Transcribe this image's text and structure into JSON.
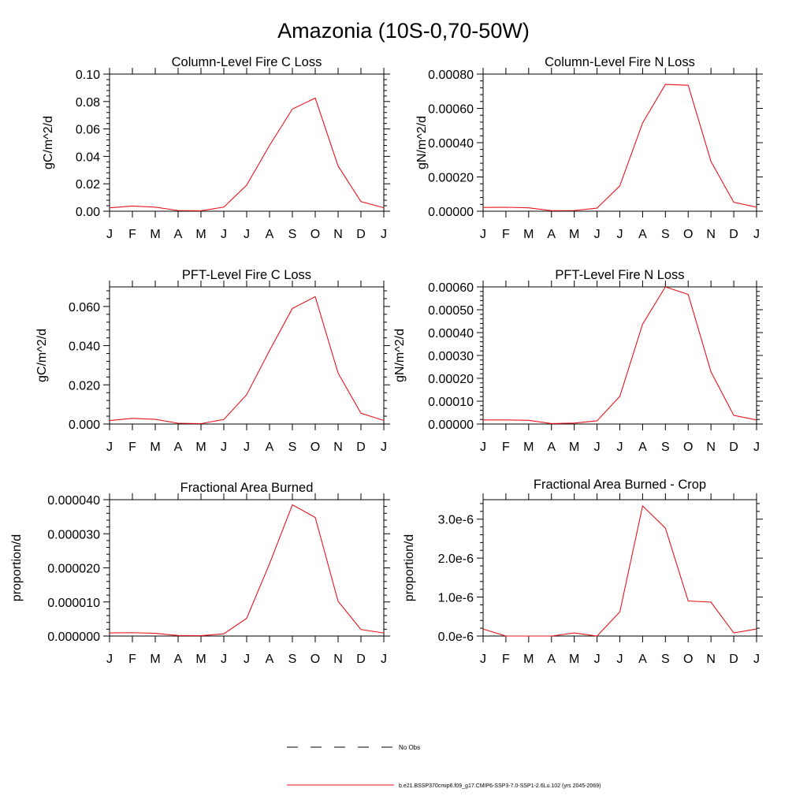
{
  "figure": {
    "title": "Amazonia (10S-0,70-50W)",
    "months": [
      "J",
      "F",
      "M",
      "A",
      "M",
      "J",
      "J",
      "A",
      "S",
      "O",
      "N",
      "D",
      "J"
    ]
  },
  "legend": {
    "obs_label": "No Obs",
    "model_label": "b.e21.BSSP370cmip6.f09_g17.CMIP6-SSP3-7.0-SSP1-2.6Lu.102 (yrs 2045-2069)",
    "model_color": "#e8141c",
    "obs_color": "#000000"
  },
  "chart_data": [
    {
      "type": "line",
      "title": "Column-Level Fire C Loss",
      "ylabel": "gC/m^2/d",
      "x": [
        "J",
        "F",
        "M",
        "A",
        "M",
        "J",
        "J",
        "A",
        "S",
        "O",
        "N",
        "D",
        "J"
      ],
      "ylim": [
        0,
        0.1
      ],
      "yticks": [
        0,
        0.02,
        0.04,
        0.06,
        0.08,
        0.1
      ],
      "ytick_labels": [
        "0.00",
        "0.02",
        "0.04",
        "0.06",
        "0.08",
        "0.10"
      ],
      "series": [
        {
          "values": [
            0.0025,
            0.0038,
            0.003,
            0.0005,
            0.0003,
            0.003,
            0.019,
            0.048,
            0.0745,
            0.0825,
            0.033,
            0.007,
            0.0025
          ]
        }
      ]
    },
    {
      "type": "line",
      "title": "Column-Level Fire N Loss",
      "ylabel": "gN/m^2/d",
      "x": [
        "J",
        "F",
        "M",
        "A",
        "M",
        "J",
        "J",
        "A",
        "S",
        "O",
        "N",
        "D",
        "J"
      ],
      "ylim": [
        0,
        0.0008
      ],
      "yticks": [
        0,
        0.0002,
        0.0004,
        0.0006,
        0.0008
      ],
      "ytick_labels": [
        "0.00000",
        "0.00020",
        "0.00040",
        "0.00060",
        "0.00080"
      ],
      "series": [
        {
          "values": [
            2.2e-05,
            2.3e-05,
            2e-05,
            3e-06,
            4e-06,
            1.8e-05,
            0.000148,
            0.000515,
            0.00074,
            0.000735,
            0.00029,
            5.2e-05,
            2.4e-05
          ]
        }
      ]
    },
    {
      "type": "line",
      "title": "PFT-Level Fire C Loss",
      "ylabel": "gC/m^2/d",
      "x": [
        "J",
        "F",
        "M",
        "A",
        "M",
        "J",
        "J",
        "A",
        "S",
        "O",
        "N",
        "D",
        "J"
      ],
      "ylim": [
        0,
        0.07
      ],
      "yticks": [
        0,
        0.02,
        0.04,
        0.06
      ],
      "ytick_labels": [
        "0.000",
        "0.020",
        "0.040",
        "0.060"
      ],
      "series": [
        {
          "values": [
            0.0018,
            0.0029,
            0.0024,
            0.0004,
            0.0002,
            0.0023,
            0.015,
            0.0375,
            0.059,
            0.065,
            0.026,
            0.0055,
            0.0018
          ]
        }
      ]
    },
    {
      "type": "line",
      "title": "PFT-Level Fire N Loss",
      "ylabel": "gN/m^2/d",
      "x": [
        "J",
        "F",
        "M",
        "A",
        "M",
        "J",
        "J",
        "A",
        "S",
        "O",
        "N",
        "D",
        "J"
      ],
      "ylim": [
        0,
        0.0006
      ],
      "yticks": [
        0,
        0.0001,
        0.0002,
        0.0003,
        0.0004,
        0.0005,
        0.0006
      ],
      "ytick_labels": [
        "0.00000",
        "0.00010",
        "0.00020",
        "0.00030",
        "0.00040",
        "0.00050",
        "0.00060"
      ],
      "series": [
        {
          "values": [
            1.8e-05,
            1.8e-05,
            1.6e-05,
            2e-06,
            4e-06,
            1.4e-05,
            0.000121,
            0.000437,
            0.0006,
            0.000567,
            0.000228,
            3.8e-05,
            1.8e-05
          ]
        }
      ]
    },
    {
      "type": "line",
      "title": "Fractional Area Burned",
      "ylabel": "proportion/d",
      "x": [
        "J",
        "F",
        "M",
        "A",
        "M",
        "J",
        "J",
        "A",
        "S",
        "O",
        "N",
        "D",
        "J"
      ],
      "ylim": [
        0,
        4e-05
      ],
      "yticks": [
        0,
        1e-05,
        2e-05,
        3e-05,
        4e-05
      ],
      "ytick_labels": [
        "0.000000",
        "0.000010",
        "0.000020",
        "0.000030",
        "0.000040"
      ],
      "series": [
        {
          "values": [
            9.2e-07,
            9.8e-07,
            8e-07,
            1.5e-07,
            1e-07,
            6.5e-07,
            5.2e-06,
            2.12e-05,
            3.85e-05,
            3.48e-05,
            1.02e-05,
            1.9e-06,
            9e-07
          ]
        }
      ]
    },
    {
      "type": "line",
      "title": "Fractional Area Burned - Crop",
      "ylabel": "proportion/d",
      "x": [
        "J",
        "F",
        "M",
        "A",
        "M",
        "J",
        "J",
        "A",
        "S",
        "O",
        "N",
        "D",
        "J"
      ],
      "ylim": [
        0,
        3.5e-06
      ],
      "yticks": [
        0,
        1e-06,
        2e-06,
        3e-06
      ],
      "ytick_labels": [
        "0.0e-6",
        "1.0e-6",
        "2.0e-6",
        "3.0e-6"
      ],
      "series": [
        {
          "values": [
            1.8e-07,
            0.0,
            0.0,
            0.0,
            8e-08,
            0.0,
            6.2e-07,
            3.34e-06,
            2.77e-06,
            9e-07,
            8.7e-07,
            8e-08,
            1.8e-07
          ]
        }
      ]
    }
  ]
}
